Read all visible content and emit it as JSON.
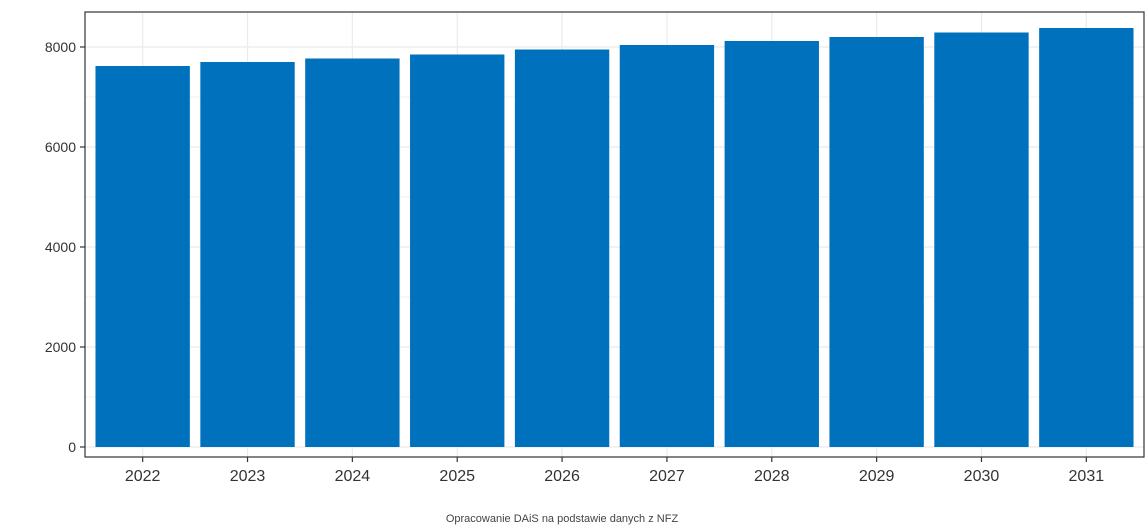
{
  "chart_data": {
    "type": "bar",
    "categories": [
      "2022",
      "2023",
      "2024",
      "2025",
      "2026",
      "2027",
      "2028",
      "2029",
      "2030",
      "2031"
    ],
    "values": [
      7620,
      7700,
      7770,
      7850,
      7950,
      8040,
      8120,
      8200,
      8290,
      8380
    ],
    "ylim": [
      -200,
      8700
    ],
    "yticks": [
      0,
      2000,
      4000,
      6000,
      8000
    ],
    "ytick_labels": [
      "0",
      "2000",
      "4000",
      "6000",
      "8000"
    ],
    "bar_color": "#0072bd",
    "grid": true,
    "grid_color": "#ebebeb",
    "title": "",
    "xlabel": "",
    "ylabel": "",
    "source": "Opracowanie DAiS na podstawie danych z NFZ"
  }
}
